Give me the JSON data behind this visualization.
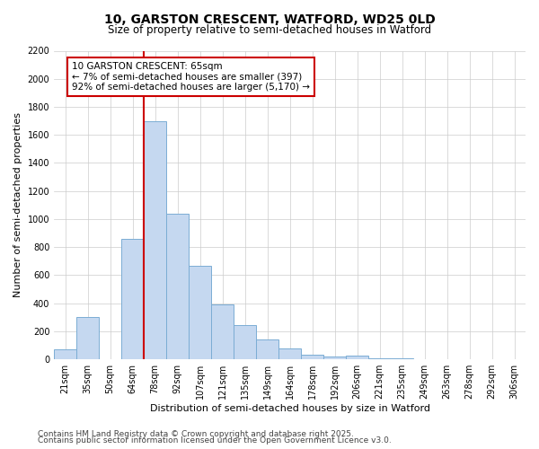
{
  "title_line1": "10, GARSTON CRESCENT, WATFORD, WD25 0LD",
  "title_line2": "Size of property relative to semi-detached houses in Watford",
  "xlabel": "Distribution of semi-detached houses by size in Watford",
  "ylabel": "Number of semi-detached properties",
  "categories": [
    "21sqm",
    "35sqm",
    "50sqm",
    "64sqm",
    "78sqm",
    "92sqm",
    "107sqm",
    "121sqm",
    "135sqm",
    "149sqm",
    "164sqm",
    "178sqm",
    "192sqm",
    "206sqm",
    "221sqm",
    "235sqm",
    "249sqm",
    "263sqm",
    "278sqm",
    "292sqm",
    "306sqm"
  ],
  "values": [
    70,
    305,
    0,
    860,
    1700,
    1040,
    670,
    390,
    245,
    140,
    75,
    35,
    20,
    25,
    10,
    5,
    2,
    2,
    1,
    1,
    1
  ],
  "bar_color": "#c5d8f0",
  "bar_edge_color": "#7badd4",
  "vline_position": 3.5,
  "vline_color": "#cc0000",
  "annotation_text": "10 GARSTON CRESCENT: 65sqm\n← 7% of semi-detached houses are smaller (397)\n92% of semi-detached houses are larger (5,170) →",
  "annotation_box_edge_color": "#cc0000",
  "annotation_box_face_color": "#ffffff",
  "ylim": [
    0,
    2200
  ],
  "yticks": [
    0,
    200,
    400,
    600,
    800,
    1000,
    1200,
    1400,
    1600,
    1800,
    2000,
    2200
  ],
  "footnote_line1": "Contains HM Land Registry data © Crown copyright and database right 2025.",
  "footnote_line2": "Contains public sector information licensed under the Open Government Licence v3.0.",
  "bg_color": "#ffffff",
  "grid_color": "#cccccc",
  "title_fontsize": 10,
  "subtitle_fontsize": 8.5,
  "axis_label_fontsize": 8,
  "tick_fontsize": 7,
  "annotation_fontsize": 7.5,
  "footnote_fontsize": 6.5
}
